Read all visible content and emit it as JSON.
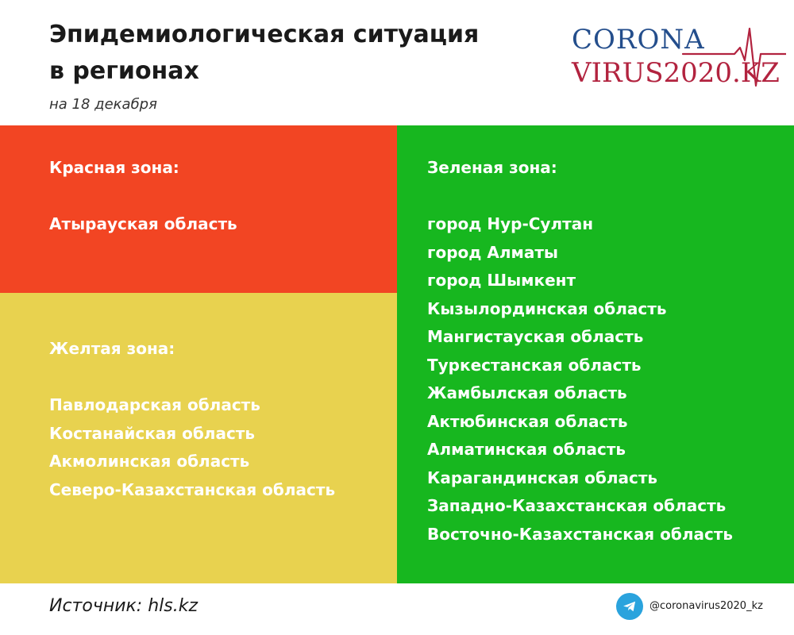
{
  "header": {
    "title_line1": "Эпидемиологическая ситуация",
    "title_line2": "в регионах",
    "subtitle": "на 18 декабря"
  },
  "logo": {
    "line1": "CORONA",
    "line2": "VIRUS2020.KZ",
    "colors": {
      "top": "#244e8c",
      "bottom": "#b2233f"
    }
  },
  "zones": {
    "red": {
      "heading": "Красная зона:",
      "color": "#f24523",
      "regions": [
        "Атырауская область"
      ]
    },
    "yellow": {
      "heading": "Желтая зона:",
      "color": "#e8d24f",
      "regions": [
        "Павлодарская область",
        "Костанайская область",
        "Акмолинская область",
        "Северо-Казахстанская область"
      ]
    },
    "green": {
      "heading": "Зеленая зона:",
      "color": "#17b71f",
      "regions": [
        "город Нур-Султан",
        "город Алматы",
        "город Шымкент",
        "Кызылординская область",
        "Мангистауская область",
        "Туркестанская область",
        "Жамбылская область",
        "Актюбинская область",
        "Алматинская область",
        "Карагандинская область",
        "Западно-Казахстанская область",
        "Восточно-Казахстанская область"
      ]
    }
  },
  "footer": {
    "source": "Источник: hls.kz",
    "handle_icon": "telegram-icon",
    "handle": "@coronavirus2020_kz"
  }
}
